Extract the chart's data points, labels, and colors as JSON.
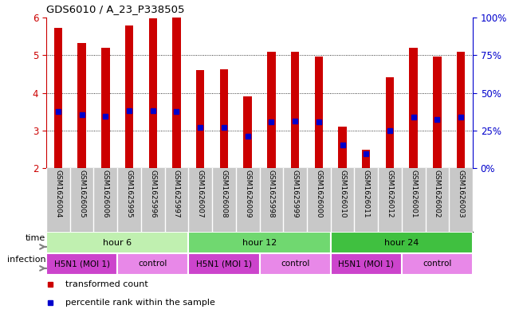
{
  "title": "GDS6010 / A_23_P338505",
  "samples": [
    "GSM1626004",
    "GSM1626005",
    "GSM1626006",
    "GSM1625995",
    "GSM1625996",
    "GSM1625997",
    "GSM1626007",
    "GSM1626008",
    "GSM1626009",
    "GSM1625998",
    "GSM1625999",
    "GSM1626000",
    "GSM1626010",
    "GSM1626011",
    "GSM1626012",
    "GSM1626001",
    "GSM1626002",
    "GSM1626003"
  ],
  "bar_tops": [
    5.72,
    5.32,
    5.2,
    5.78,
    5.98,
    6.0,
    4.6,
    4.63,
    3.9,
    5.08,
    5.1,
    4.96,
    3.1,
    2.48,
    4.42,
    5.2,
    4.96,
    5.08
  ],
  "blue_markers": [
    3.5,
    3.42,
    3.38,
    3.52,
    3.52,
    3.5,
    3.08,
    3.08,
    2.85,
    3.22,
    3.25,
    3.22,
    2.62,
    2.38,
    3.0,
    3.35,
    3.3,
    3.35
  ],
  "ymin": 2.0,
  "ymax": 6.0,
  "bar_color": "#cc0000",
  "marker_color": "#0000cc",
  "bg_color": "#ffffff",
  "grid_color": "#000000",
  "xlabels_bg": "#c8c8c8",
  "time_groups": [
    {
      "name": "hour 6",
      "start": 0,
      "end": 6,
      "color": "#c0f0b0"
    },
    {
      "name": "hour 12",
      "start": 6,
      "end": 12,
      "color": "#70d870"
    },
    {
      "name": "hour 24",
      "start": 12,
      "end": 18,
      "color": "#40c040"
    }
  ],
  "infection_groups": [
    {
      "name": "H5N1 (MOI 1)",
      "start": 0,
      "end": 3,
      "color": "#cc44cc"
    },
    {
      "name": "control",
      "start": 3,
      "end": 6,
      "color": "#e888e8"
    },
    {
      "name": "H5N1 (MOI 1)",
      "start": 6,
      "end": 9,
      "color": "#cc44cc"
    },
    {
      "name": "control",
      "start": 9,
      "end": 12,
      "color": "#e888e8"
    },
    {
      "name": "H5N1 (MOI 1)",
      "start": 12,
      "end": 15,
      "color": "#cc44cc"
    },
    {
      "name": "control",
      "start": 15,
      "end": 18,
      "color": "#e888e8"
    }
  ],
  "legend_items": [
    {
      "label": "transformed count",
      "color": "#cc0000"
    },
    {
      "label": "percentile rank within the sample",
      "color": "#0000cc"
    }
  ]
}
